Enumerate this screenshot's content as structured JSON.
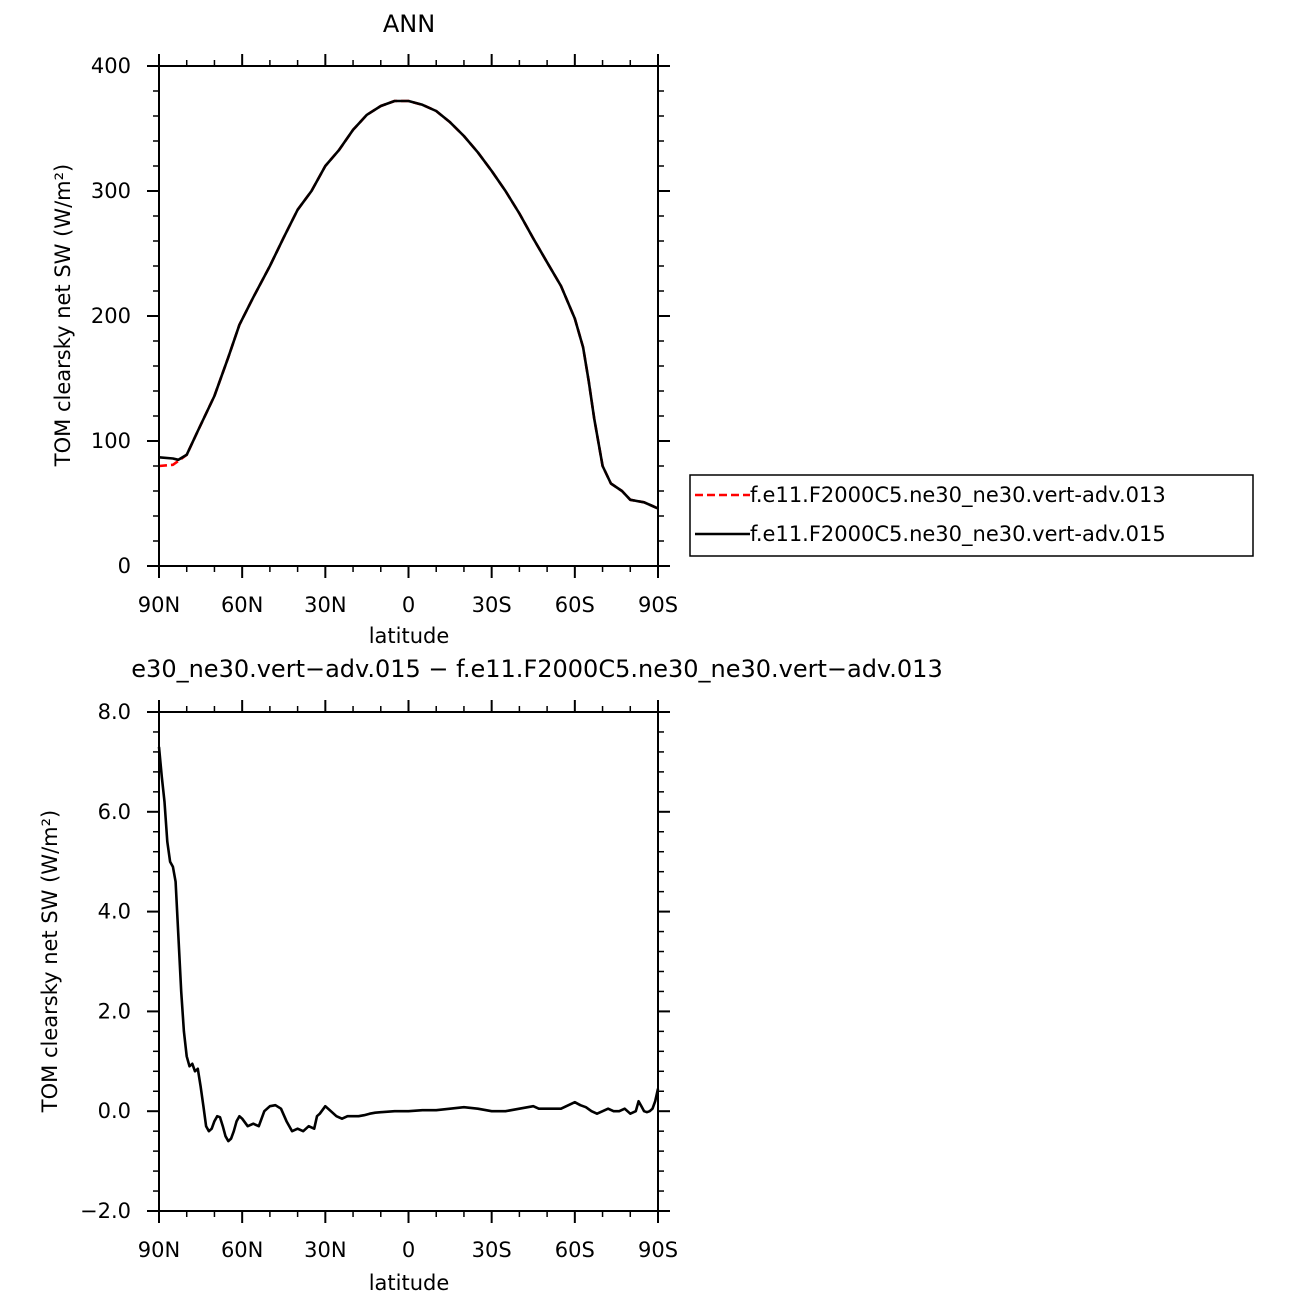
{
  "colors": {
    "model_013": "#ff0000",
    "model_015": "#000000",
    "axis": "#000000"
  },
  "chart_data": [
    {
      "type": "line",
      "title": "ANN",
      "xlabel": "latitude",
      "ylabel": "TOM clearsky net SW (W/m²)",
      "xlim": [
        90,
        -90
      ],
      "ylim": [
        0,
        400
      ],
      "yticks": [
        0,
        100,
        200,
        300,
        400
      ],
      "ytick_labels": [
        "0",
        "100",
        "200",
        "300",
        "400"
      ],
      "xticks": [
        90,
        60,
        30,
        0,
        -30,
        -60,
        -90
      ],
      "xtick_labels": [
        "90N",
        "60N",
        "30N",
        "0",
        "30S",
        "60S",
        "90S"
      ],
      "legend_placement": "right",
      "grid": false,
      "series": [
        {
          "name": "f.e11.F2000C5.ne30_ne30.vert-adv.013",
          "style": "dashed",
          "color": "#ff0000",
          "x": [
            90,
            85,
            83,
            80,
            76,
            70,
            65,
            61,
            56,
            50,
            45,
            40,
            35,
            30,
            25,
            20,
            15,
            10,
            5,
            0,
            -5,
            -10,
            -15,
            -20,
            -25,
            -30,
            -35,
            -40,
            -45,
            -50,
            -55,
            -60,
            -63,
            -65,
            -67,
            -70,
            -73,
            -77,
            -80,
            -85,
            -88,
            -90
          ],
          "values": [
            80,
            81,
            84,
            89,
            108,
            136,
            167,
            193,
            215,
            240,
            263,
            285,
            300,
            320,
            333,
            349,
            361,
            368,
            372,
            372,
            369,
            364,
            355,
            344,
            331,
            316,
            300,
            282,
            262,
            243,
            224,
            198,
            175,
            148,
            118,
            80,
            66,
            60,
            53,
            51,
            48,
            46
          ]
        },
        {
          "name": "f.e11.F2000C5.ne30_ne30.vert-adv.015",
          "style": "solid",
          "color": "#000000",
          "x": [
            90,
            85,
            83,
            80,
            76,
            70,
            65,
            61,
            56,
            50,
            45,
            40,
            35,
            30,
            25,
            20,
            15,
            10,
            5,
            0,
            -5,
            -10,
            -15,
            -20,
            -25,
            -30,
            -35,
            -40,
            -45,
            -50,
            -55,
            -60,
            -63,
            -65,
            -67,
            -70,
            -73,
            -77,
            -80,
            -85,
            -88,
            -90
          ],
          "values": [
            87,
            86,
            85,
            89,
            108,
            136,
            167,
            193,
            215,
            240,
            263,
            285,
            300,
            320,
            333,
            349,
            361,
            368,
            372,
            372,
            369,
            364,
            355,
            344,
            331,
            316,
            300,
            282,
            262,
            243,
            224,
            198,
            175,
            148,
            118,
            80,
            66,
            60,
            53,
            51,
            48,
            46
          ]
        }
      ]
    },
    {
      "type": "line",
      "title": "e30_ne30.vert−adv.015 − f.e11.F2000C5.ne30_ne30.vert−adv.013",
      "xlabel": "latitude",
      "ylabel": "TOM clearsky net SW (W/m²)",
      "xlim": [
        90,
        -90
      ],
      "ylim": [
        -2,
        8
      ],
      "yticks": [
        -2,
        0,
        2,
        4,
        6,
        8
      ],
      "ytick_labels": [
        "−2.0",
        "0.0",
        "2.0",
        "4.0",
        "6.0",
        "8.0"
      ],
      "xticks": [
        90,
        60,
        30,
        0,
        -30,
        -60,
        -90
      ],
      "xtick_labels": [
        "90N",
        "60N",
        "30N",
        "0",
        "30S",
        "60S",
        "90S"
      ],
      "grid": false,
      "series": [
        {
          "style": "solid",
          "color": "#000000",
          "x": [
            90,
            89,
            88,
            87,
            86,
            85,
            84,
            83,
            82,
            81,
            80,
            79,
            78,
            77,
            76,
            75,
            74,
            73,
            72,
            71,
            70,
            69,
            68,
            67,
            66,
            65,
            64,
            63,
            62,
            61,
            60,
            58,
            56,
            54,
            52,
            50,
            48,
            46,
            44,
            42,
            40,
            38,
            36,
            34,
            33,
            32,
            30,
            28,
            26,
            24,
            22,
            20,
            18,
            16,
            14,
            12,
            10,
            5,
            0,
            -5,
            -10,
            -15,
            -20,
            -25,
            -30,
            -35,
            -40,
            -45,
            -47,
            -50,
            -55,
            -60,
            -62,
            -64,
            -66,
            -68,
            -70,
            -72,
            -74,
            -76,
            -78,
            -80,
            -82,
            -83,
            -84,
            -85,
            -86,
            -87,
            -88,
            -89,
            -90
          ],
          "values": [
            7.3,
            6.7,
            6.2,
            5.4,
            5.0,
            4.9,
            4.6,
            3.5,
            2.4,
            1.6,
            1.1,
            0.9,
            0.95,
            0.8,
            0.85,
            0.5,
            0.1,
            -0.3,
            -0.4,
            -0.35,
            -0.2,
            -0.1,
            -0.12,
            -0.3,
            -0.5,
            -0.6,
            -0.55,
            -0.4,
            -0.2,
            -0.1,
            -0.15,
            -0.3,
            -0.25,
            -0.3,
            0.0,
            0.1,
            0.12,
            0.05,
            -0.2,
            -0.4,
            -0.35,
            -0.4,
            -0.3,
            -0.35,
            -0.1,
            -0.05,
            0.1,
            0.0,
            -0.1,
            -0.15,
            -0.1,
            -0.1,
            -0.1,
            -0.08,
            -0.05,
            -0.03,
            -0.02,
            0.0,
            0.0,
            0.02,
            0.02,
            0.05,
            0.08,
            0.05,
            0.0,
            0.0,
            0.05,
            0.1,
            0.05,
            0.05,
            0.05,
            0.18,
            0.12,
            0.08,
            0.0,
            -0.05,
            0.0,
            0.05,
            0.0,
            0.0,
            0.05,
            -0.05,
            0.0,
            0.2,
            0.1,
            0.0,
            -0.02,
            0.0,
            0.05,
            0.2,
            0.45
          ]
        }
      ]
    }
  ]
}
